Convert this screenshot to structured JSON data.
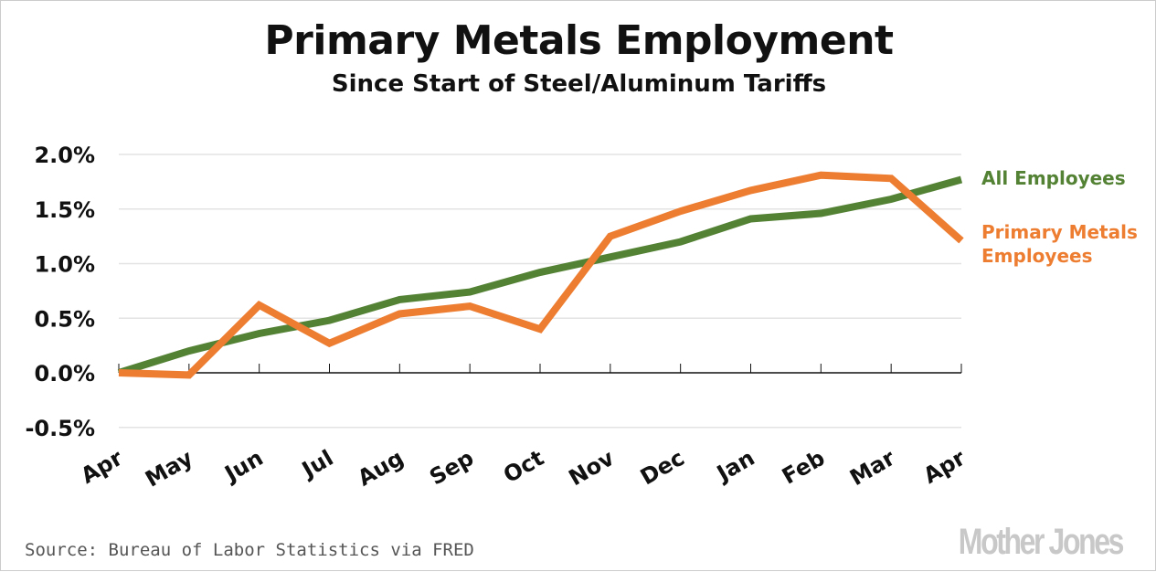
{
  "chart_data": {
    "type": "line",
    "title": "Primary Metals Employment",
    "subtitle": "Since Start of Steel/Aluminum Tariffs",
    "categories": [
      "Apr",
      "May",
      "Jun",
      "Jul",
      "Aug",
      "Sep",
      "Oct",
      "Nov",
      "Dec",
      "Jan",
      "Feb",
      "Mar",
      "Apr"
    ],
    "yticks": [
      "2.0%",
      "1.5%",
      "1.0%",
      "0.5%",
      "0.0%",
      "-0.5%"
    ],
    "ylim": [
      -0.5,
      2.0
    ],
    "grid": true,
    "legend": "right (inline labels)",
    "series": [
      {
        "name": "All Employees",
        "color": "#548235",
        "values": [
          0.0,
          0.2,
          0.36,
          0.48,
          0.67,
          0.74,
          0.92,
          1.06,
          1.2,
          1.41,
          1.46,
          1.59,
          1.77
        ]
      },
      {
        "name": "Primary Metals Employees",
        "name_lines": [
          "Primary Metals",
          "Employees"
        ],
        "color": "#ED7D31",
        "values": [
          0.0,
          -0.02,
          0.62,
          0.27,
          0.54,
          0.61,
          0.4,
          1.25,
          1.48,
          1.67,
          1.81,
          1.78,
          1.21
        ]
      }
    ]
  },
  "source": "Source: Bureau of Labor Statistics via FRED",
  "logo": "Mother Jones"
}
